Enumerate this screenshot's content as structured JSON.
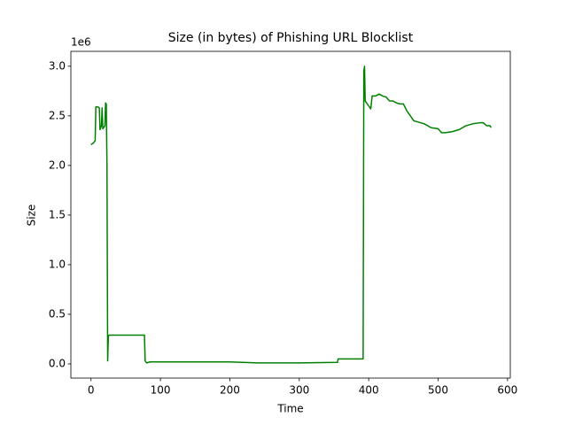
{
  "chart_data": {
    "type": "line",
    "title": "Size (in bytes) of Phishing URL Blocklist",
    "x_label": "Time",
    "y_label": "Size",
    "y_offset_label": "1e6",
    "color": "green",
    "x": [
      0,
      4,
      6,
      7,
      10,
      12,
      13,
      15,
      16,
      17,
      20,
      21,
      22,
      23,
      24,
      25,
      26,
      40,
      60,
      77,
      78,
      80,
      85,
      100,
      150,
      200,
      240,
      300,
      355,
      356,
      390,
      392,
      393,
      394,
      395,
      400,
      403,
      405,
      410,
      415,
      420,
      425,
      430,
      435,
      440,
      445,
      450,
      455,
      460,
      465,
      470,
      480,
      490,
      500,
      505,
      510,
      520,
      530,
      540,
      550,
      560,
      565,
      570,
      575,
      576
    ],
    "values": [
      2.21,
      2.23,
      2.25,
      2.59,
      2.59,
      2.58,
      2.36,
      2.4,
      2.58,
      2.37,
      2.4,
      2.63,
      2.62,
      2.0,
      0.03,
      0.28,
      0.29,
      0.29,
      0.29,
      0.29,
      0.03,
      0.01,
      0.02,
      0.02,
      0.02,
      0.02,
      0.01,
      0.01,
      0.015,
      0.05,
      0.05,
      0.05,
      2.95,
      3.0,
      2.65,
      2.6,
      2.57,
      2.7,
      2.7,
      2.72,
      2.7,
      2.69,
      2.65,
      2.65,
      2.63,
      2.62,
      2.62,
      2.55,
      2.5,
      2.45,
      2.44,
      2.42,
      2.38,
      2.37,
      2.33,
      2.33,
      2.34,
      2.36,
      2.4,
      2.42,
      2.43,
      2.43,
      2.4,
      2.4,
      2.38
    ],
    "xlim": [
      -29,
      604
    ],
    "ylim": [
      -0.143,
      3.15
    ],
    "xticks": [
      0,
      100,
      200,
      300,
      400,
      500,
      600
    ],
    "yticks": [
      {
        "value": 0,
        "label": "0.0"
      },
      0.5,
      {
        "value": 1,
        "label": "1.0"
      },
      1.5,
      {
        "value": 2,
        "label": "2.0"
      },
      2.5,
      {
        "value": 3,
        "label": "3.0"
      }
    ],
    "grid": false
  }
}
